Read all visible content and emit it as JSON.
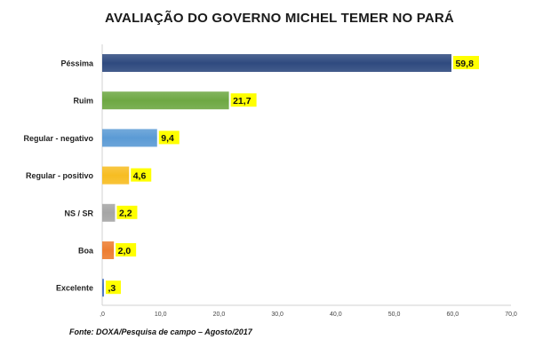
{
  "chart_data": {
    "type": "bar",
    "orientation": "horizontal",
    "title": "AVALIAÇÃO DO GOVERNO MICHEL TEMER NO PARÁ",
    "categories": [
      "Péssima",
      "Ruim",
      "Regular - negativo",
      "Regular - positivo",
      "NS / SR",
      "Boa",
      "Excelente"
    ],
    "values": [
      59.8,
      21.7,
      9.4,
      4.6,
      2.2,
      2.0,
      0.3
    ],
    "value_labels": [
      "59,8",
      "21,7",
      "9,4",
      "4,6",
      "2,2",
      "2,0",
      ",3"
    ],
    "colors": [
      "#2f4a7f",
      "#6ea843",
      "#5b9bd5",
      "#f7bd22",
      "#a5a5a5",
      "#ed7d31",
      "#4472c4"
    ],
    "label_bg": "#ffff00",
    "xlim": [
      0,
      70
    ],
    "x_ticks": [
      ",0",
      "10,0",
      "20,0",
      "30,0",
      "40,0",
      "50,0",
      "60,0",
      "70,0"
    ],
    "xlabel": "",
    "ylabel": "",
    "grid": false,
    "legend": "none"
  },
  "footer": {
    "source": "Fonte: DOXA/Pesquisa de campo – Agosto/2017"
  }
}
